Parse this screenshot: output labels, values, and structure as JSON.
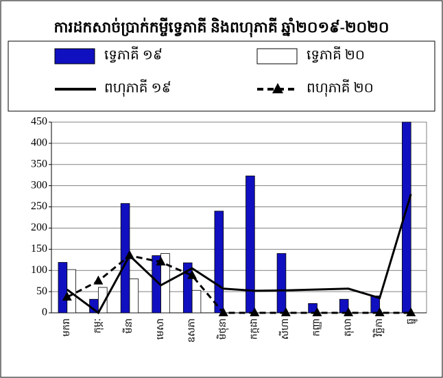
{
  "chart_data": {
    "type": "bar",
    "title": "ការដកសាច់ប្រាក់កម្ចីទ្វេភាគី និងពហុភាគី ឆ្នាំ២០១៩-២០២០",
    "categories": [
      "មករា",
      "កុម្ភៈ",
      "មីនា",
      "មេសា",
      "ឧសភា",
      "មិថុនា",
      "កក្កដា",
      "សីហា",
      "កញ្ញា",
      "តុលា",
      "វិច្ឆិកា",
      "ធ្នូ"
    ],
    "series": [
      {
        "name": "ទ្វេភាគី ១៩",
        "type": "bar",
        "color": "#1010c0",
        "values": [
          119,
          32,
          258,
          135,
          118,
          240,
          323,
          140,
          22,
          32,
          40,
          450
        ]
      },
      {
        "name": "ទ្វេភាគី ២០",
        "type": "bar",
        "color": "#ffffff",
        "values": [
          102,
          60,
          80,
          140,
          53,
          0,
          0,
          0,
          0,
          0,
          0,
          0
        ]
      },
      {
        "name": "ពហុភាគី ១៩",
        "type": "line",
        "color": "#000000",
        "dashed": false,
        "marker": "none",
        "values": [
          55,
          0,
          135,
          65,
          105,
          57,
          52,
          53,
          55,
          57,
          35,
          280
        ]
      },
      {
        "name": "ពហុភាគី ២០",
        "type": "line",
        "color": "#000000",
        "dashed": true,
        "marker": "triangle",
        "values": [
          37,
          75,
          135,
          120,
          88,
          0,
          0,
          0,
          0,
          0,
          0,
          0
        ]
      }
    ],
    "ylim": [
      0,
      450
    ],
    "yticks": [
      0,
      50,
      100,
      150,
      200,
      250,
      300,
      350,
      400,
      450
    ],
    "grid": true
  }
}
